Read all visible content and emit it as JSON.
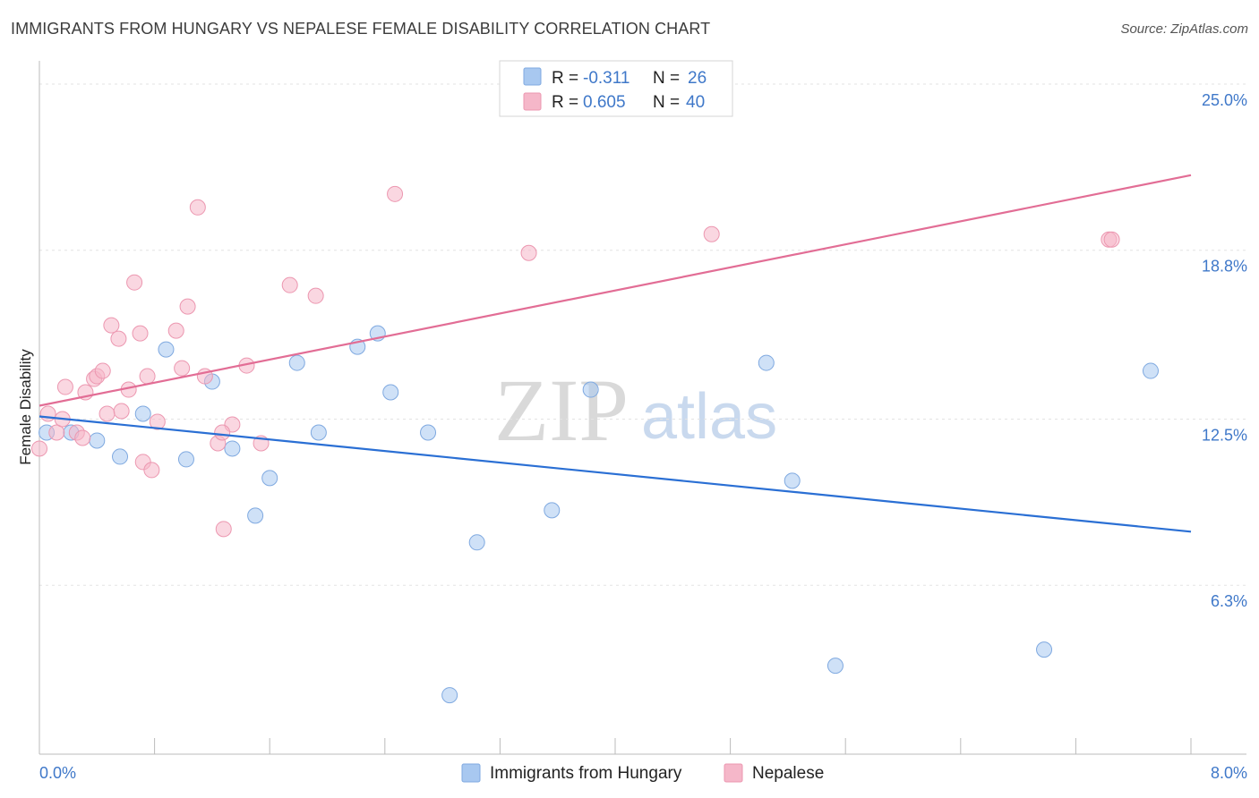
{
  "header": {
    "title": "IMMIGRANTS FROM HUNGARY VS NEPALESE FEMALE DISABILITY CORRELATION CHART",
    "source": "Source: ZipAtlas.com"
  },
  "watermark": {
    "zip": "ZIP",
    "atlas": "atlas"
  },
  "stats": [
    {
      "r_label": "R =",
      "r_value": "-0.311",
      "n_label": "N =",
      "n_value": "26",
      "color": "#a8c8f0"
    },
    {
      "r_label": "R =",
      "r_value": "0.605",
      "n_label": "N =",
      "n_value": "40",
      "color": "#f5b7c9"
    }
  ],
  "chart_data": {
    "type": "scatter",
    "title": "IMMIGRANTS FROM HUNGARY VS NEPALESE FEMALE DISABILITY CORRELATION CHART",
    "xlabel": "",
    "ylabel": "Female Disability",
    "xlim": [
      0,
      8
    ],
    "ylim": [
      0,
      25.5
    ],
    "x_tick_labels": [
      "0.0%",
      "8.0%"
    ],
    "y_ticks": [
      6.3,
      12.5,
      18.8,
      25.0
    ],
    "y_tick_labels": [
      "6.3%",
      "12.5%",
      "18.8%",
      "25.0%"
    ],
    "grid": true,
    "legend_position": "bottom-center",
    "series": [
      {
        "name": "Immigrants from Hungary",
        "color": "#a8c8f0",
        "edge": "#7fa9e0",
        "line_color": "#2a6fd4",
        "trend": [
          [
            0,
            12.6
          ],
          [
            8,
            8.3
          ]
        ],
        "points": [
          [
            0.05,
            12.0
          ],
          [
            0.22,
            12.0
          ],
          [
            0.4,
            11.7
          ],
          [
            0.56,
            11.1
          ],
          [
            0.72,
            12.7
          ],
          [
            0.88,
            15.1
          ],
          [
            1.02,
            11.0
          ],
          [
            1.2,
            13.9
          ],
          [
            1.5,
            8.9
          ],
          [
            1.6,
            10.3
          ],
          [
            1.79,
            14.6
          ],
          [
            1.94,
            12.0
          ],
          [
            2.21,
            15.2
          ],
          [
            2.35,
            15.7
          ],
          [
            2.44,
            13.5
          ],
          [
            2.7,
            12.0
          ],
          [
            2.85,
            2.2
          ],
          [
            3.04,
            7.9
          ],
          [
            3.56,
            9.1
          ],
          [
            3.83,
            13.6
          ],
          [
            5.05,
            14.6
          ],
          [
            5.23,
            10.2
          ],
          [
            5.53,
            3.3
          ],
          [
            6.98,
            3.9
          ],
          [
            7.72,
            14.3
          ],
          [
            1.34,
            11.4
          ]
        ]
      },
      {
        "name": "Nepalese",
        "color": "#f5b7c9",
        "edge": "#ec97b0",
        "line_color": "#e26d95",
        "trend": [
          [
            0,
            13.0
          ],
          [
            8,
            21.6
          ]
        ],
        "points": [
          [
            0.0,
            11.4
          ],
          [
            0.06,
            12.7
          ],
          [
            0.12,
            12.0
          ],
          [
            0.16,
            12.5
          ],
          [
            0.18,
            13.7
          ],
          [
            0.26,
            12.0
          ],
          [
            0.3,
            11.8
          ],
          [
            0.32,
            13.5
          ],
          [
            0.38,
            14.0
          ],
          [
            0.4,
            14.1
          ],
          [
            0.44,
            14.3
          ],
          [
            0.47,
            12.7
          ],
          [
            0.5,
            16.0
          ],
          [
            0.55,
            15.5
          ],
          [
            0.57,
            12.8
          ],
          [
            0.62,
            13.6
          ],
          [
            0.66,
            17.6
          ],
          [
            0.7,
            15.7
          ],
          [
            0.72,
            10.9
          ],
          [
            0.75,
            14.1
          ],
          [
            0.78,
            10.6
          ],
          [
            0.82,
            12.4
          ],
          [
            0.95,
            15.8
          ],
          [
            0.99,
            14.4
          ],
          [
            1.03,
            16.7
          ],
          [
            1.1,
            20.4
          ],
          [
            1.15,
            14.1
          ],
          [
            1.24,
            11.6
          ],
          [
            1.28,
            8.4
          ],
          [
            1.34,
            12.3
          ],
          [
            1.44,
            14.5
          ],
          [
            1.54,
            11.6
          ],
          [
            1.74,
            17.5
          ],
          [
            1.92,
            17.1
          ],
          [
            2.47,
            20.9
          ],
          [
            3.4,
            18.7
          ],
          [
            4.67,
            19.4
          ],
          [
            7.43,
            19.2
          ],
          [
            7.45,
            19.2
          ],
          [
            1.27,
            12.0
          ]
        ]
      }
    ]
  }
}
